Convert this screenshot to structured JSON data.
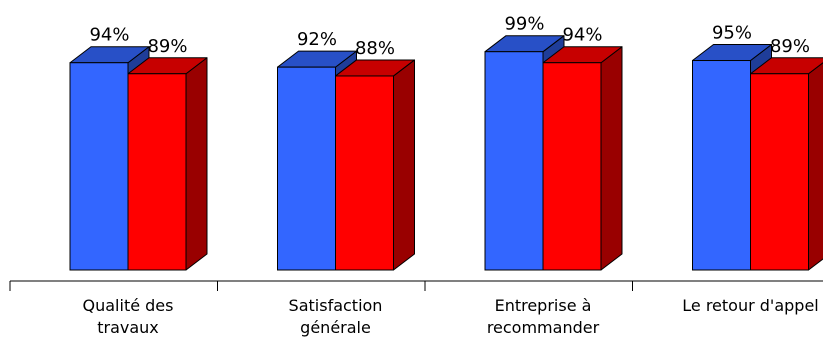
{
  "chart_data": {
    "type": "bar",
    "categories": [
      [
        "Qualité des",
        "travaux"
      ],
      [
        "Satisfaction",
        "générale"
      ],
      [
        "Entreprise à",
        "recommander"
      ],
      [
        "Le retour d'appel"
      ]
    ],
    "series": [
      {
        "color": "#3366ff",
        "values": [
          94,
          92,
          99,
          95
        ],
        "labels": [
          "94%",
          "92%",
          "99%",
          "95%"
        ]
      },
      {
        "color": "#ff0000",
        "values": [
          89,
          88,
          94,
          89
        ],
        "labels": [
          "89%",
          "88%",
          "94%",
          "89%"
        ]
      }
    ],
    "ylim": [
      0,
      100
    ],
    "grid": false,
    "legend": "none",
    "three_d": true,
    "title": "",
    "xlabel": "",
    "ylabel": ""
  }
}
